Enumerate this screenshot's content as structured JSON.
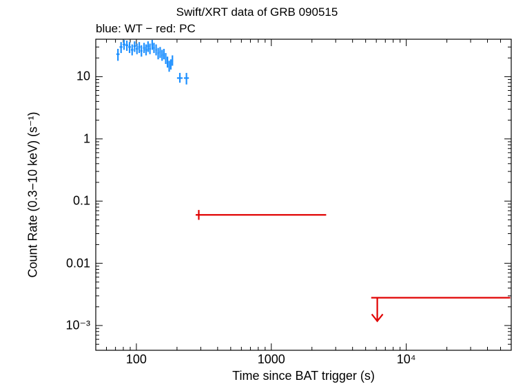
{
  "chart_data": {
    "type": "scatter",
    "title": "Swift/XRT data of GRB 090515",
    "subtitle": "blue: WT − red: PC",
    "xlabel": "Time since BAT trigger (s)",
    "ylabel": "Count Rate (0.3−10 keV) (s⁻¹)",
    "x_scale": "log",
    "y_scale": "log",
    "xlim": [
      50,
      60000
    ],
    "ylim": [
      0.0004,
      40
    ],
    "x_tick_labels": [
      {
        "value": 100,
        "label": "100"
      },
      {
        "value": 1000,
        "label": "1000"
      },
      {
        "value": 10000,
        "label": "10⁴"
      }
    ],
    "y_tick_labels": [
      {
        "value": 10,
        "label": "10"
      },
      {
        "value": 1,
        "label": "1"
      },
      {
        "value": 0.1,
        "label": "0.1"
      },
      {
        "value": 0.01,
        "label": "0.01"
      },
      {
        "value": 0.001,
        "label": "10⁻³"
      }
    ],
    "series": [
      {
        "color": "#1e90ff",
        "points": [
          {
            "x": 73,
            "y": 23,
            "xerr": [
              71,
              75
            ],
            "yerr": [
              18,
              28
            ]
          },
          {
            "x": 77,
            "y": 30,
            "xerr": [
              75,
              79
            ],
            "yerr": [
              24,
              36
            ]
          },
          {
            "x": 81,
            "y": 33,
            "xerr": [
              79,
              83
            ],
            "yerr": [
              27,
              39
            ]
          },
          {
            "x": 85,
            "y": 32,
            "xerr": [
              83,
              87
            ],
            "yerr": [
              26,
              38
            ]
          },
          {
            "x": 89,
            "y": 30,
            "xerr": [
              87,
              91
            ],
            "yerr": [
              24,
              36
            ]
          },
          {
            "x": 93,
            "y": 27,
            "xerr": [
              91,
              95
            ],
            "yerr": [
              22,
              33
            ]
          },
          {
            "x": 97,
            "y": 31,
            "xerr": [
              95,
              99
            ],
            "yerr": [
              25,
              37
            ]
          },
          {
            "x": 101,
            "y": 28,
            "xerr": [
              99,
              103
            ],
            "yerr": [
              23,
              34
            ]
          },
          {
            "x": 105,
            "y": 30,
            "xerr": [
              103,
              107
            ],
            "yerr": [
              24,
              36
            ]
          },
          {
            "x": 109,
            "y": 26,
            "xerr": [
              107,
              111
            ],
            "yerr": [
              21,
              32
            ]
          },
          {
            "x": 114,
            "y": 29,
            "xerr": [
              112,
              116
            ],
            "yerr": [
              24,
              35
            ]
          },
          {
            "x": 118,
            "y": 27,
            "xerr": [
              116,
              120
            ],
            "yerr": [
              22,
              33
            ]
          },
          {
            "x": 122,
            "y": 31,
            "xerr": [
              120,
              124
            ],
            "yerr": [
              25,
              37
            ]
          },
          {
            "x": 126,
            "y": 28,
            "xerr": [
              124,
              128
            ],
            "yerr": [
              23,
              34
            ]
          },
          {
            "x": 131,
            "y": 33,
            "xerr": [
              129,
              133
            ],
            "yerr": [
              27,
              39
            ]
          },
          {
            "x": 135,
            "y": 29,
            "xerr": [
              133,
              137
            ],
            "yerr": [
              24,
              35
            ]
          },
          {
            "x": 140,
            "y": 27,
            "xerr": [
              138,
              142
            ],
            "yerr": [
              22,
              33
            ]
          },
          {
            "x": 145,
            "y": 24,
            "xerr": [
              143,
              147
            ],
            "yerr": [
              19,
              29
            ]
          },
          {
            "x": 150,
            "y": 25,
            "xerr": [
              148,
              152
            ],
            "yerr": [
              20,
              30
            ]
          },
          {
            "x": 155,
            "y": 22,
            "xerr": [
              153,
              157
            ],
            "yerr": [
              18,
              27
            ]
          },
          {
            "x": 160,
            "y": 23,
            "xerr": [
              158,
              162
            ],
            "yerr": [
              19,
              28
            ]
          },
          {
            "x": 165,
            "y": 20,
            "xerr": [
              163,
              167
            ],
            "yerr": [
              16,
              24
            ]
          },
          {
            "x": 170,
            "y": 17,
            "xerr": [
              168,
              172
            ],
            "yerr": [
              14,
              21
            ]
          },
          {
            "x": 175,
            "y": 15,
            "xerr": [
              173,
              177
            ],
            "yerr": [
              12,
              18
            ]
          },
          {
            "x": 180,
            "y": 16,
            "xerr": [
              178,
              182
            ],
            "yerr": [
              13,
              19
            ]
          },
          {
            "x": 185,
            "y": 18,
            "xerr": [
              183,
              187
            ],
            "yerr": [
              15,
              22
            ]
          },
          {
            "x": 210,
            "y": 9.5,
            "xerr": [
              200,
              220
            ],
            "yerr": [
              8.0,
              11.5
            ]
          },
          {
            "x": 235,
            "y": 9.5,
            "xerr": [
              225,
              245
            ],
            "yerr": [
              7.5,
              11.5
            ]
          }
        ]
      },
      {
        "color": "#e00000",
        "points": [
          {
            "x": 290,
            "y": 0.06,
            "xerr": [
              275,
              2550
            ],
            "yerr": [
              0.05,
              0.072
            ]
          }
        ],
        "upper_limits": [
          {
            "x": 6100,
            "y": 0.0028,
            "xerr": [
              5500,
              59000
            ]
          }
        ]
      }
    ]
  }
}
